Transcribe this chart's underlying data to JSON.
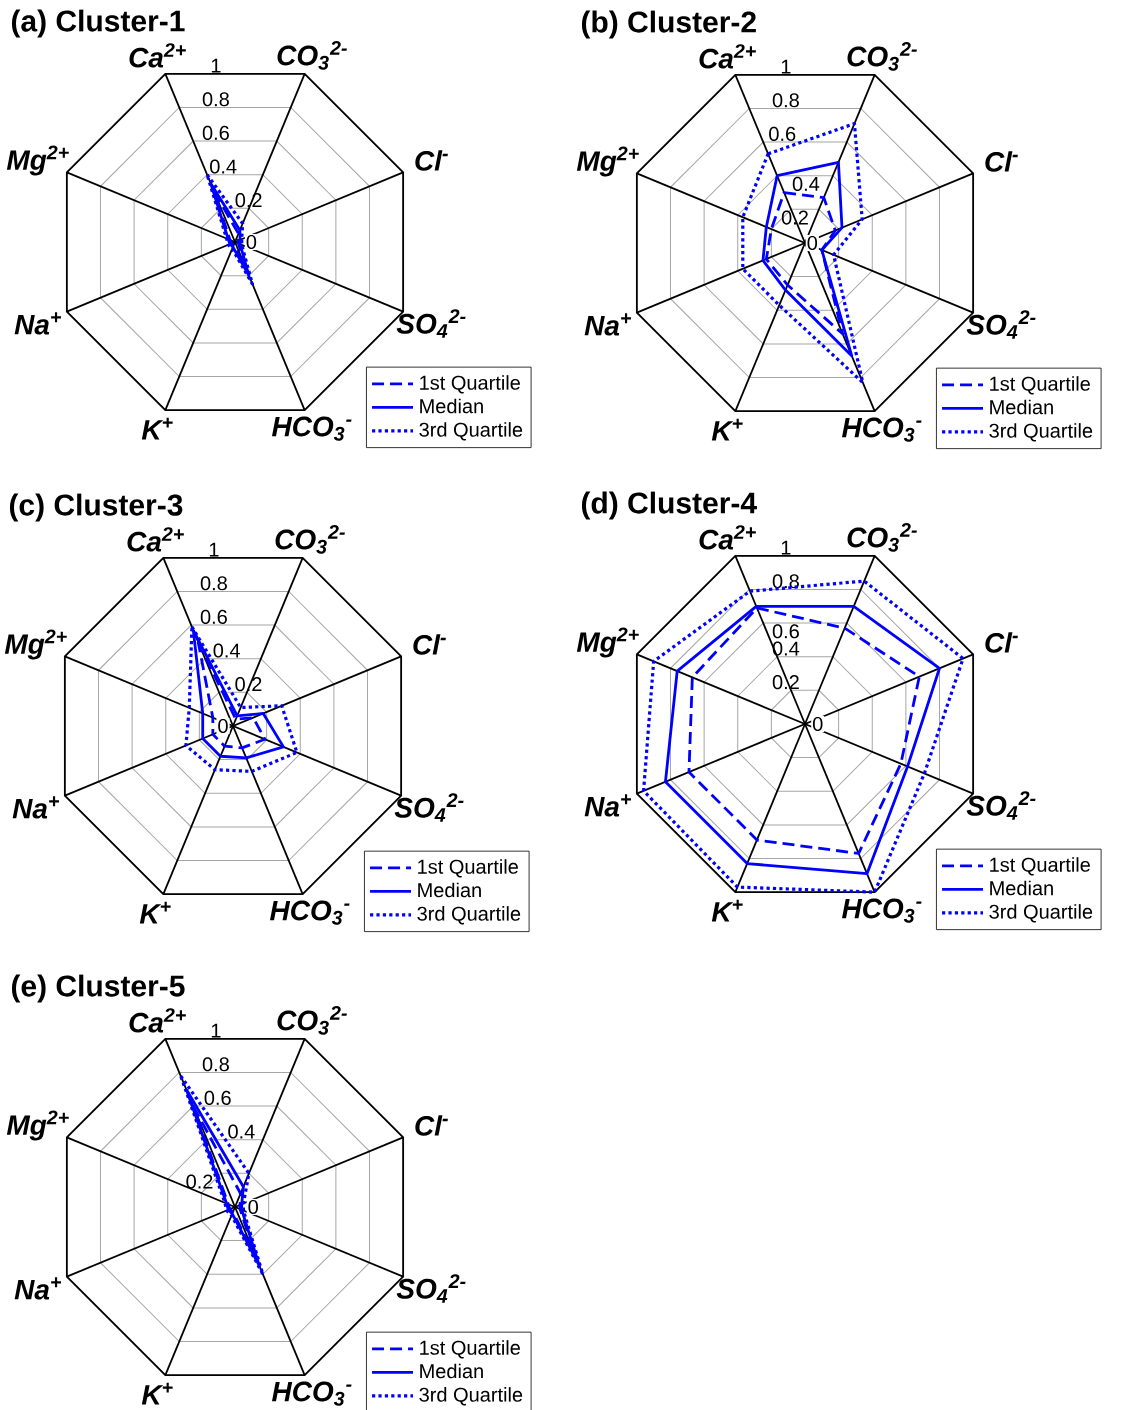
{
  "chart_data": [
    {
      "type": "radar",
      "title": "(a) Cluster-1",
      "categories": [
        "Ca$^{2+}$",
        "CO$_{3}$$^{2-}$",
        "Cl$^{-}$",
        "SO$_{4}$$^{2-}$",
        "HCO$_{3}$$^{-}$",
        "K$^{+}$",
        "Na$^{+}$",
        "Mg$^{2+}$"
      ],
      "ylim": [
        0,
        1
      ],
      "yticks": [
        0,
        0.2,
        0.4,
        0.6,
        0.8,
        1
      ],
      "grid": true,
      "legend": "bottom right",
      "series": [
        {
          "name": "1st Quartile",
          "color": "#0000ff",
          "line_style": "dashed",
          "values": [
            0.3,
            0.05,
            0.02,
            0.02,
            0.15,
            0.02,
            0.02,
            0.03
          ]
        },
        {
          "name": "Median",
          "color": "#0000ff",
          "line_style": "solid",
          "values": [
            0.35,
            0.07,
            0.03,
            0.03,
            0.2,
            0.03,
            0.03,
            0.04
          ]
        },
        {
          "name": "3rd Quartile",
          "color": "#0000ff",
          "line_style": "dotted",
          "values": [
            0.4,
            0.11,
            0.04,
            0.04,
            0.25,
            0.04,
            0.04,
            0.05
          ]
        }
      ]
    },
    {
      "type": "radar",
      "title": "(b) Cluster-2",
      "categories": [
        "Ca$^{2+}$",
        "CO$_{3}$$^{2-}$",
        "Cl$^{-}$",
        "SO$_{4}$$^{2-}$",
        "HCO$_{3}$$^{-}$",
        "K$^{+}$",
        "Na$^{+}$",
        "Mg$^{2+}$"
      ],
      "ylim": [
        0,
        1
      ],
      "yticks": [
        0,
        0.2,
        0.4,
        0.6,
        0.8,
        1
      ],
      "grid": true,
      "legend": "bottom right",
      "series": [
        {
          "name": "1st Quartile",
          "color": "#0000ff",
          "line_style": "dashed",
          "values": [
            0.3,
            0.27,
            0.18,
            0.1,
            0.54,
            0.25,
            0.23,
            0.2
          ]
        },
        {
          "name": "Median",
          "color": "#0000ff",
          "line_style": "solid",
          "values": [
            0.4,
            0.48,
            0.22,
            0.1,
            0.67,
            0.28,
            0.25,
            0.23
          ]
        },
        {
          "name": "3rd Quartile",
          "color": "#0000ff",
          "line_style": "dotted",
          "values": [
            0.53,
            0.71,
            0.34,
            0.17,
            0.83,
            0.37,
            0.37,
            0.37
          ]
        }
      ]
    },
    {
      "type": "radar",
      "title": "(c) Cluster-3",
      "categories": [
        "Ca$^{2+}$",
        "CO$_{3}$$^{2-}$",
        "Cl$^{-}$",
        "SO$_{4}$$^{2-}$",
        "HCO$_{3}$$^{-}$",
        "K$^{+}$",
        "Na$^{+}$",
        "Mg$^{2+}$"
      ],
      "ylim": [
        0,
        1
      ],
      "yticks": [
        0,
        0.2,
        0.4,
        0.6,
        0.8,
        1
      ],
      "grid": true,
      "legend": "bottom right",
      "series": [
        {
          "name": "1st Quartile",
          "color": "#0000ff",
          "line_style": "dashed",
          "values": [
            0.5,
            0.04,
            0.12,
            0.19,
            0.13,
            0.12,
            0.12,
            0.12
          ]
        },
        {
          "name": "Median",
          "color": "#0000ff",
          "line_style": "solid",
          "values": [
            0.57,
            0.06,
            0.18,
            0.3,
            0.19,
            0.18,
            0.18,
            0.18
          ]
        },
        {
          "name": "3rd Quartile",
          "color": "#0000ff",
          "line_style": "dotted",
          "values": [
            0.59,
            0.11,
            0.29,
            0.38,
            0.27,
            0.26,
            0.28,
            0.26
          ]
        }
      ]
    },
    {
      "type": "radar",
      "title": "(d) Cluster-4",
      "categories": [
        "Ca$^{2+}$",
        "CO$_{3}$$^{2-}$",
        "Cl$^{-}$",
        "SO$_{4}$$^{2-}$",
        "HCO$_{3}$$^{-}$",
        "K$^{+}$",
        "Na$^{+}$",
        "Mg$^{2+}$"
      ],
      "ylim": [
        0,
        1
      ],
      "yticks": [
        0,
        0.2,
        0.4,
        0.6,
        0.8,
        1
      ],
      "grid": true,
      "legend": "bottom right",
      "series": [
        {
          "name": "1st Quartile",
          "color": "#0000ff",
          "line_style": "dashed",
          "values": [
            0.69,
            0.57,
            0.68,
            0.57,
            0.77,
            0.69,
            0.69,
            0.67
          ]
        },
        {
          "name": "Median",
          "color": "#0000ff",
          "line_style": "solid",
          "values": [
            0.7,
            0.7,
            0.8,
            0.61,
            0.89,
            0.83,
            0.83,
            0.76
          ]
        },
        {
          "name": "3rd Quartile",
          "color": "#0000ff",
          "line_style": "dotted",
          "values": [
            0.79,
            0.85,
            0.94,
            0.71,
            1.0,
            0.97,
            0.96,
            0.9
          ]
        }
      ]
    },
    {
      "type": "radar",
      "title": "(e) Cluster-5",
      "categories": [
        "Ca$^{2+}$",
        "CO$_{3}$$^{2-}$",
        "Cl$^{-}$",
        "SO$_{4}$$^{2-}$",
        "HCO$_{3}$$^{-}$",
        "K$^{+}$",
        "Na$^{+}$",
        "Mg$^{2+}$"
      ],
      "ylim": [
        0,
        1
      ],
      "yticks": [
        0,
        0.2,
        0.4,
        0.6,
        0.8,
        1
      ],
      "grid": true,
      "legend": "bottom right",
      "series": [
        {
          "name": "1st Quartile",
          "color": "#0000ff",
          "line_style": "dashed",
          "values": [
            0.6,
            0.08,
            0.03,
            0.03,
            0.3,
            0.03,
            0.03,
            0.04
          ]
        },
        {
          "name": "Median",
          "color": "#0000ff",
          "line_style": "solid",
          "values": [
            0.7,
            0.12,
            0.04,
            0.04,
            0.35,
            0.04,
            0.04,
            0.05
          ]
        },
        {
          "name": "3rd Quartile",
          "color": "#0000ff",
          "line_style": "dotted",
          "values": [
            0.78,
            0.2,
            0.05,
            0.05,
            0.4,
            0.05,
            0.05,
            0.06
          ]
        }
      ]
    }
  ]
}
